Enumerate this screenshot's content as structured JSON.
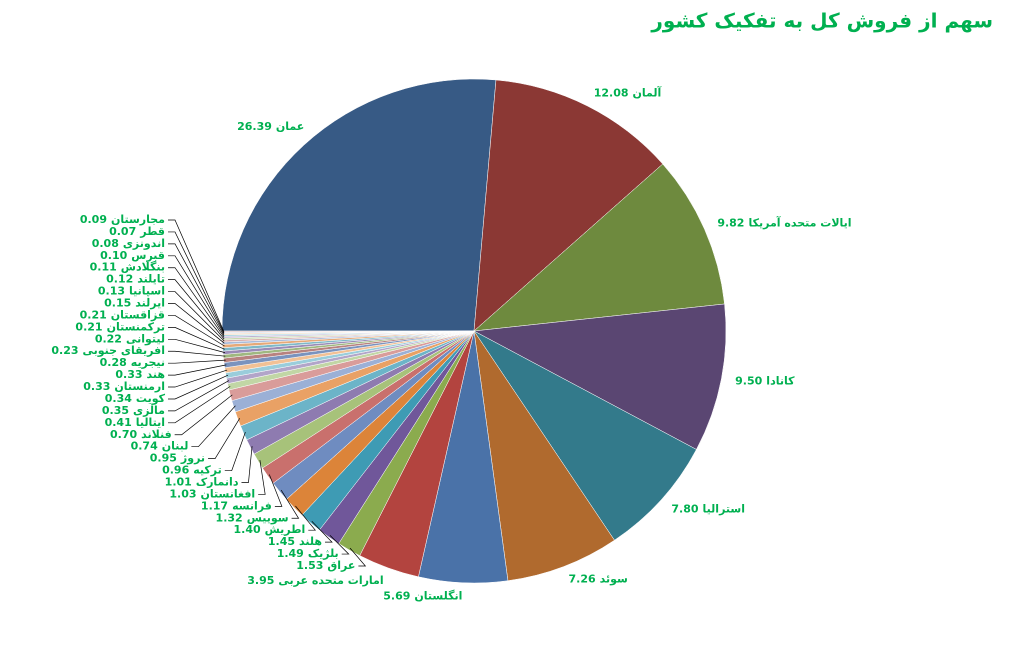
{
  "chart_data": {
    "type": "pie",
    "title": "سهم از فروش کل به تفکیک کشور",
    "categories": [
      "عمان",
      "آلمان",
      "ایالات متحده آمریکا",
      "کانادا",
      "استرالیا",
      "سوئد",
      "انگلستان",
      "امارات متحده عربی",
      "عراق",
      "بلژیک",
      "هلند",
      "اطریش",
      "سوییس",
      "فرانسه",
      "افغانستان",
      "دانمارک",
      "ترکیه",
      "نروژ",
      "لبنان",
      "فنلاند",
      "ایتالیا",
      "مالزی",
      "کویت",
      "ارمنستان",
      "هند",
      "نیجریه",
      "افریقای جنوبی",
      "لیتوانی",
      "ترکمنستان",
      "قزاقستان",
      "ایرلند",
      "اسپانیا",
      "تایلند",
      "بنگلادش",
      "قبرس",
      "اندونزی",
      "قطر",
      "مجارستان"
    ],
    "values": [
      26.39,
      12.08,
      9.82,
      9.5,
      7.8,
      7.26,
      5.69,
      3.95,
      1.53,
      1.49,
      1.45,
      1.4,
      1.32,
      1.17,
      1.03,
      1.01,
      0.96,
      0.95,
      0.74,
      0.7,
      0.41,
      0.35,
      0.34,
      0.33,
      0.33,
      0.28,
      0.23,
      0.22,
      0.21,
      0.21,
      0.15,
      0.13,
      0.12,
      0.11,
      0.1,
      0.08,
      0.07,
      0.09
    ],
    "value_labels": [
      "26.39",
      "12.08",
      "9.82",
      "9.50",
      "7.80",
      "7.26",
      "5.69",
      "3.95",
      "1.53",
      "1.49",
      "1.45",
      "1.40",
      "1.32",
      "1.17",
      "1.03",
      "1.01",
      "0.96",
      "0.95",
      "0.74",
      "0.70",
      "0.41",
      "0.35",
      "0.34",
      "0.33",
      "0.33",
      "0.28",
      "0.23",
      "0.22",
      "0.21",
      "0.21",
      "0.15",
      "0.13",
      "0.12",
      "0.11",
      "0.10",
      "0.08",
      "0.07",
      "0.09"
    ],
    "colors": [
      "#375a85",
      "#8b3834",
      "#6e8a3e",
      "#5a4672",
      "#337a8b",
      "#b06a2e",
      "#4a72a8",
      "#b3443f",
      "#8bab4e",
      "#70579a",
      "#3e9bb4",
      "#dc8439",
      "#6f8cc0",
      "#c9706d",
      "#a7c27a",
      "#8e7bb0",
      "#6cb4c8",
      "#e9a165",
      "#9bb0d6",
      "#d99c9a",
      "#c1d6a5",
      "#b2a5c9",
      "#9acddb",
      "#f2c195",
      "#7a93be",
      "#b8827f",
      "#9fb880",
      "#9a8bb7",
      "#7fb9c8",
      "#e6a978",
      "#a9bbd9",
      "#d9aeac",
      "#c5d6ae",
      "#bdb2d2",
      "#aed6e2",
      "#f3cda9",
      "#c8d2e6",
      "#e6cbca"
    ]
  }
}
